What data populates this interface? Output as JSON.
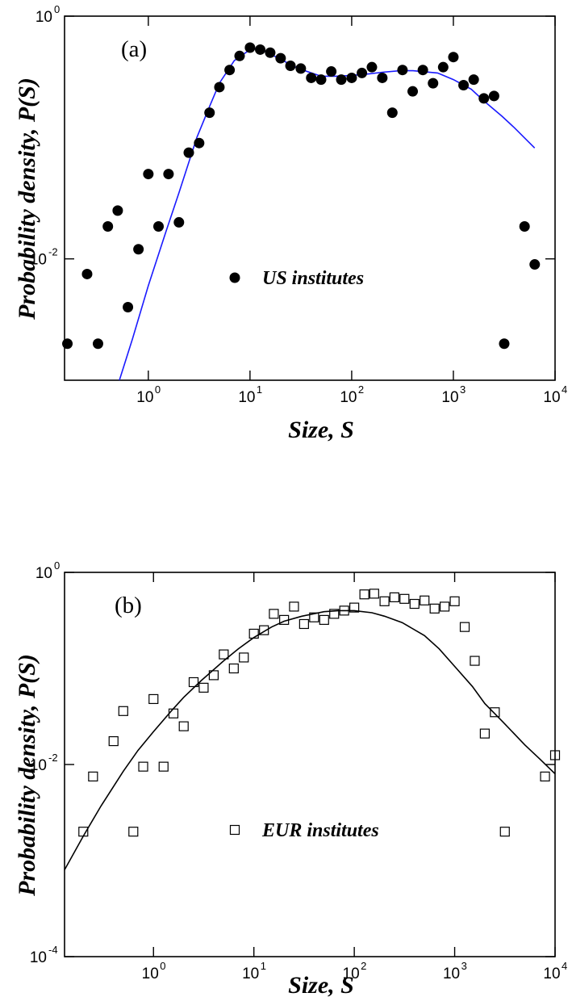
{
  "chart_data": [
    {
      "type": "scatter",
      "panel_label": "(a)",
      "xlabel": "Size, S",
      "ylabel": "Probability density, P(S)",
      "xscale": "log",
      "yscale": "log",
      "xlim": [
        0.15,
        10000
      ],
      "ylim": [
        0.001,
        1
      ],
      "x_ticks": [
        {
          "base": "10",
          "exp": "0"
        },
        {
          "base": "10",
          "exp": "1"
        },
        {
          "base": "10",
          "exp": "2"
        },
        {
          "base": "10",
          "exp": "3"
        },
        {
          "base": "10",
          "exp": "4"
        }
      ],
      "x_tick_values": [
        1,
        10,
        100,
        1000,
        10000
      ],
      "y_ticks": [
        {
          "base": "10",
          "exp": "0"
        },
        {
          "base": "10",
          "exp": "-2"
        }
      ],
      "y_tick_values": [
        1,
        0.01
      ],
      "grid": false,
      "legend_position": "center",
      "series": [
        {
          "name": "US institutes",
          "marker": "filled-circle",
          "color": "#000000",
          "x": [
            0.16,
            0.25,
            0.32,
            0.4,
            0.5,
            0.63,
            0.8,
            1.0,
            1.26,
            1.58,
            2.0,
            2.5,
            3.16,
            4.0,
            5.0,
            6.3,
            7.9,
            10,
            12.6,
            15.8,
            20,
            25,
            31.6,
            40,
            50,
            63,
            79,
            100,
            126,
            158,
            200,
            251,
            316,
            398,
            501,
            631,
            794,
            1000,
            1259,
            1585,
            1995,
            2512,
            3162,
            5012,
            6310
          ],
          "y": [
            0.002,
            0.0075,
            0.002,
            0.0185,
            0.025,
            0.004,
            0.012,
            0.05,
            0.0185,
            0.05,
            0.02,
            0.075,
            0.09,
            0.16,
            0.26,
            0.36,
            0.47,
            0.55,
            0.53,
            0.5,
            0.45,
            0.39,
            0.37,
            0.31,
            0.3,
            0.35,
            0.3,
            0.31,
            0.34,
            0.38,
            0.31,
            0.16,
            0.36,
            0.24,
            0.36,
            0.28,
            0.38,
            0.46,
            0.27,
            0.3,
            0.21,
            0.22,
            0.002,
            0.0185,
            0.009
          ]
        },
        {
          "name": "",
          "type": "line",
          "color": "#1a1aff",
          "x": [
            0.52,
            0.7,
            1,
            1.5,
            2,
            3,
            4,
            5,
            7,
            10,
            12,
            15,
            20,
            30,
            50,
            70,
            100,
            150,
            200,
            300,
            400,
            700,
            1000,
            1500,
            2000,
            3000,
            4000,
            6300
          ],
          "y": [
            0.001,
            0.0022,
            0.006,
            0.017,
            0.035,
            0.1,
            0.18,
            0.28,
            0.43,
            0.53,
            0.54,
            0.5,
            0.44,
            0.37,
            0.32,
            0.32,
            0.325,
            0.335,
            0.345,
            0.355,
            0.355,
            0.34,
            0.3,
            0.25,
            0.2,
            0.15,
            0.12,
            0.082
          ]
        }
      ]
    },
    {
      "type": "scatter",
      "panel_label": "(b)",
      "xlabel": "Size, S",
      "ylabel": "Probability density, P(S)",
      "xscale": "log",
      "yscale": "log",
      "xlim": [
        0.13,
        10000
      ],
      "ylim": [
        0.0001,
        1
      ],
      "x_ticks": [
        {
          "base": "10",
          "exp": "0"
        },
        {
          "base": "10",
          "exp": "1"
        },
        {
          "base": "10",
          "exp": "2"
        },
        {
          "base": "10",
          "exp": "3"
        },
        {
          "base": "10",
          "exp": "4"
        }
      ],
      "x_tick_values": [
        1,
        10,
        100,
        1000,
        10000
      ],
      "y_ticks": [
        {
          "base": "10",
          "exp": "0"
        },
        {
          "base": "10",
          "exp": "-2"
        },
        {
          "base": "10",
          "exp": "-4"
        }
      ],
      "y_tick_values": [
        1,
        0.01,
        0.0001
      ],
      "grid": false,
      "legend_position": "center",
      "series": [
        {
          "name": "EUR institutes",
          "marker": "open-square",
          "color": "#000000",
          "x": [
            0.2,
            0.25,
            0.4,
            0.5,
            0.63,
            0.79,
            1.0,
            1.26,
            1.58,
            2.0,
            2.51,
            3.16,
            3.98,
            5.01,
            6.31,
            7.94,
            10,
            12.6,
            15.8,
            20,
            25.1,
            31.6,
            39.8,
            50.1,
            63.1,
            79.4,
            100,
            126,
            158,
            200,
            251,
            316,
            398,
            501,
            631,
            794,
            1000,
            1259,
            1585,
            1995,
            2512,
            3162,
            7943,
            10000
          ],
          "y": [
            0.002,
            0.0075,
            0.0175,
            0.036,
            0.002,
            0.0095,
            0.048,
            0.0095,
            0.034,
            0.025,
            0.072,
            0.063,
            0.085,
            0.14,
            0.1,
            0.13,
            0.23,
            0.25,
            0.37,
            0.32,
            0.44,
            0.29,
            0.34,
            0.32,
            0.37,
            0.4,
            0.43,
            0.59,
            0.6,
            0.5,
            0.55,
            0.53,
            0.47,
            0.51,
            0.42,
            0.44,
            0.5,
            0.27,
            0.12,
            0.021,
            0.035,
            0.002,
            0.0075,
            0.0125
          ]
        },
        {
          "name": "",
          "type": "line",
          "color": "#000000",
          "x": [
            0.13,
            0.2,
            0.3,
            0.5,
            0.7,
            1,
            1.5,
            2,
            3,
            5,
            7,
            10,
            15,
            20,
            30,
            50,
            70,
            100,
            150,
            200,
            300,
            500,
            700,
            1000,
            1500,
            2000,
            3000,
            5000,
            7000,
            10000
          ],
          "y": [
            0.0008,
            0.0018,
            0.0037,
            0.0085,
            0.014,
            0.022,
            0.036,
            0.05,
            0.075,
            0.12,
            0.16,
            0.21,
            0.27,
            0.31,
            0.35,
            0.39,
            0.4,
            0.4,
            0.38,
            0.35,
            0.3,
            0.22,
            0.16,
            0.105,
            0.065,
            0.043,
            0.028,
            0.016,
            0.0115,
            0.008
          ]
        }
      ]
    }
  ]
}
